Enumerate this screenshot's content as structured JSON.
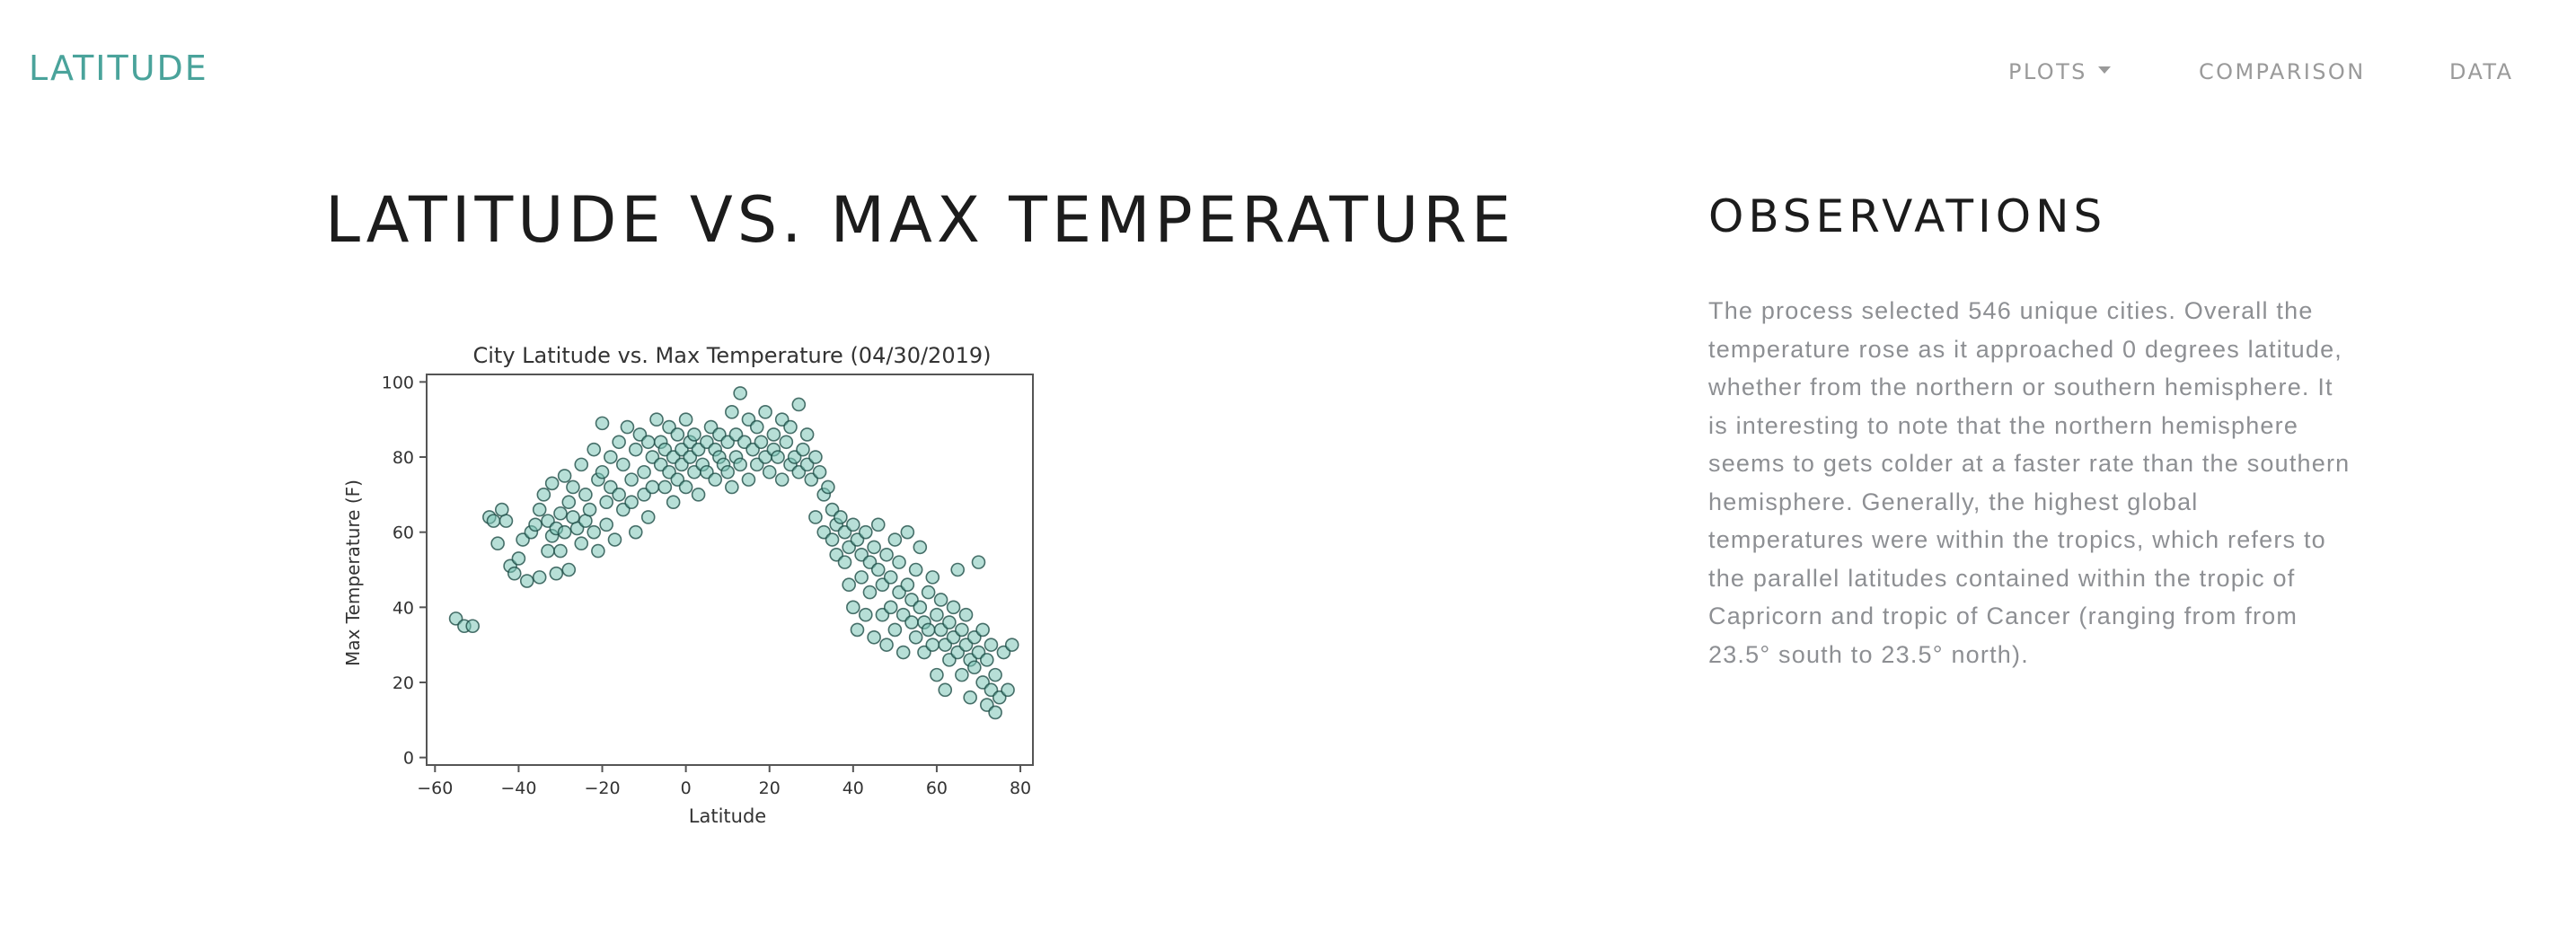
{
  "nav": {
    "brand": "LATITUDE",
    "items": [
      {
        "label": "PLOTS"
      },
      {
        "label": "COMPARISON"
      },
      {
        "label": "DATA"
      }
    ]
  },
  "main": {
    "title": "LATITUDE VS. MAX TEMPERATURE"
  },
  "observations": {
    "title": "OBSERVATIONS",
    "text": "The process selected 546 unique cities. Overall the temperature rose as it approached 0 degrees latitude, whether from the northern or southern hemisphere. It is interesting to note that the northern hemisphere seems to gets colder at a faster rate than the southern hemisphere. Generally, the highest global temperatures were within the tropics, which refers to the parallel latitudes contained within the tropic of Capricorn and tropic of Cancer (ranging from from 23.5° south to 23.5° north)."
  },
  "colors": {
    "brand": "#4aa39b",
    "marker_fill": "#7cc5b6",
    "marker_edge": "#1f4e47"
  },
  "chart_data": {
    "type": "scatter",
    "title": "City Latitude vs. Max Temperature (04/30/2019)",
    "xlabel": "Latitude",
    "ylabel": "Max Temperature (F)",
    "xlim": [
      -62,
      83
    ],
    "ylim": [
      -2,
      102
    ],
    "xticks": [
      -60,
      -40,
      -20,
      0,
      20,
      40,
      60,
      80
    ],
    "yticks": [
      0,
      20,
      40,
      60,
      80,
      100
    ],
    "grid": false,
    "points": [
      [
        -55,
        37
      ],
      [
        -53,
        35
      ],
      [
        -51,
        35
      ],
      [
        -47,
        64
      ],
      [
        -46,
        63
      ],
      [
        -45,
        57
      ],
      [
        -44,
        66
      ],
      [
        -43,
        63
      ],
      [
        -42,
        51
      ],
      [
        -41,
        49
      ],
      [
        -40,
        53
      ],
      [
        -39,
        58
      ],
      [
        -38,
        47
      ],
      [
        -37,
        60
      ],
      [
        -36,
        62
      ],
      [
        -35,
        66
      ],
      [
        -35,
        48
      ],
      [
        -34,
        70
      ],
      [
        -33,
        63
      ],
      [
        -33,
        55
      ],
      [
        -32,
        73
      ],
      [
        -32,
        59
      ],
      [
        -31,
        61
      ],
      [
        -31,
        49
      ],
      [
        -30,
        65
      ],
      [
        -30,
        55
      ],
      [
        -29,
        75
      ],
      [
        -29,
        60
      ],
      [
        -28,
        68
      ],
      [
        -28,
        50
      ],
      [
        -27,
        72
      ],
      [
        -27,
        64
      ],
      [
        -26,
        61
      ],
      [
        -25,
        78
      ],
      [
        -25,
        57
      ],
      [
        -24,
        70
      ],
      [
        -24,
        63
      ],
      [
        -23,
        66
      ],
      [
        -22,
        82
      ],
      [
        -22,
        60
      ],
      [
        -21,
        74
      ],
      [
        -21,
        55
      ],
      [
        -20,
        89
      ],
      [
        -20,
        76
      ],
      [
        -19,
        68
      ],
      [
        -19,
        62
      ],
      [
        -18,
        80
      ],
      [
        -18,
        72
      ],
      [
        -17,
        58
      ],
      [
        -16,
        84
      ],
      [
        -16,
        70
      ],
      [
        -15,
        66
      ],
      [
        -15,
        78
      ],
      [
        -14,
        88
      ],
      [
        -13,
        74
      ],
      [
        -13,
        68
      ],
      [
        -12,
        82
      ],
      [
        -12,
        60
      ],
      [
        -11,
        86
      ],
      [
        -10,
        76
      ],
      [
        -10,
        70
      ],
      [
        -9,
        84
      ],
      [
        -9,
        64
      ],
      [
        -8,
        80
      ],
      [
        -8,
        72
      ],
      [
        -7,
        90
      ],
      [
        -6,
        78
      ],
      [
        -6,
        84
      ],
      [
        -5,
        82
      ],
      [
        -5,
        72
      ],
      [
        -4,
        88
      ],
      [
        -4,
        76
      ],
      [
        -3,
        80
      ],
      [
        -3,
        68
      ],
      [
        -2,
        86
      ],
      [
        -2,
        74
      ],
      [
        -1,
        82
      ],
      [
        -1,
        78
      ],
      [
        0,
        90
      ],
      [
        0,
        72
      ],
      [
        1,
        84
      ],
      [
        1,
        80
      ],
      [
        2,
        76
      ],
      [
        2,
        86
      ],
      [
        3,
        82
      ],
      [
        3,
        70
      ],
      [
        4,
        78
      ],
      [
        5,
        84
      ],
      [
        5,
        76
      ],
      [
        6,
        88
      ],
      [
        7,
        82
      ],
      [
        7,
        74
      ],
      [
        8,
        80
      ],
      [
        8,
        86
      ],
      [
        9,
        78
      ],
      [
        10,
        84
      ],
      [
        10,
        76
      ],
      [
        11,
        92
      ],
      [
        11,
        72
      ],
      [
        12,
        86
      ],
      [
        12,
        80
      ],
      [
        13,
        97
      ],
      [
        13,
        78
      ],
      [
        14,
        84
      ],
      [
        15,
        90
      ],
      [
        15,
        74
      ],
      [
        16,
        82
      ],
      [
        17,
        88
      ],
      [
        17,
        78
      ],
      [
        18,
        84
      ],
      [
        19,
        80
      ],
      [
        19,
        92
      ],
      [
        20,
        76
      ],
      [
        21,
        86
      ],
      [
        21,
        82
      ],
      [
        22,
        80
      ],
      [
        23,
        90
      ],
      [
        23,
        74
      ],
      [
        24,
        84
      ],
      [
        25,
        88
      ],
      [
        25,
        78
      ],
      [
        26,
        80
      ],
      [
        27,
        94
      ],
      [
        27,
        76
      ],
      [
        28,
        82
      ],
      [
        29,
        78
      ],
      [
        29,
        86
      ],
      [
        30,
        74
      ],
      [
        31,
        80
      ],
      [
        31,
        64
      ],
      [
        32,
        76
      ],
      [
        33,
        70
      ],
      [
        33,
        60
      ],
      [
        34,
        72
      ],
      [
        35,
        66
      ],
      [
        35,
        58
      ],
      [
        36,
        62
      ],
      [
        36,
        54
      ],
      [
        37,
        64
      ],
      [
        38,
        60
      ],
      [
        38,
        52
      ],
      [
        39,
        56
      ],
      [
        39,
        46
      ],
      [
        40,
        62
      ],
      [
        40,
        40
      ],
      [
        41,
        58
      ],
      [
        41,
        34
      ],
      [
        42,
        54
      ],
      [
        42,
        48
      ],
      [
        43,
        60
      ],
      [
        43,
        38
      ],
      [
        44,
        52
      ],
      [
        44,
        44
      ],
      [
        45,
        56
      ],
      [
        45,
        32
      ],
      [
        46,
        50
      ],
      [
        46,
        62
      ],
      [
        47,
        46
      ],
      [
        47,
        38
      ],
      [
        48,
        54
      ],
      [
        48,
        30
      ],
      [
        49,
        48
      ],
      [
        49,
        40
      ],
      [
        50,
        58
      ],
      [
        50,
        34
      ],
      [
        51,
        44
      ],
      [
        51,
        52
      ],
      [
        52,
        38
      ],
      [
        52,
        28
      ],
      [
        53,
        46
      ],
      [
        53,
        60
      ],
      [
        54,
        36
      ],
      [
        54,
        42
      ],
      [
        55,
        50
      ],
      [
        55,
        32
      ],
      [
        56,
        40
      ],
      [
        56,
        56
      ],
      [
        57,
        36
      ],
      [
        57,
        28
      ],
      [
        58,
        44
      ],
      [
        58,
        34
      ],
      [
        59,
        30
      ],
      [
        59,
        48
      ],
      [
        60,
        38
      ],
      [
        60,
        22
      ],
      [
        61,
        34
      ],
      [
        61,
        42
      ],
      [
        62,
        30
      ],
      [
        62,
        18
      ],
      [
        63,
        36
      ],
      [
        63,
        26
      ],
      [
        64,
        40
      ],
      [
        64,
        32
      ],
      [
        65,
        28
      ],
      [
        65,
        50
      ],
      [
        66,
        34
      ],
      [
        66,
        22
      ],
      [
        67,
        30
      ],
      [
        67,
        38
      ],
      [
        68,
        26
      ],
      [
        68,
        16
      ],
      [
        69,
        32
      ],
      [
        69,
        24
      ],
      [
        70,
        28
      ],
      [
        70,
        52
      ],
      [
        71,
        20
      ],
      [
        71,
        34
      ],
      [
        72,
        26
      ],
      [
        72,
        14
      ],
      [
        73,
        18
      ],
      [
        73,
        30
      ],
      [
        74,
        12
      ],
      [
        74,
        22
      ],
      [
        75,
        16
      ],
      [
        76,
        28
      ],
      [
        77,
        18
      ],
      [
        78,
        30
      ]
    ]
  }
}
